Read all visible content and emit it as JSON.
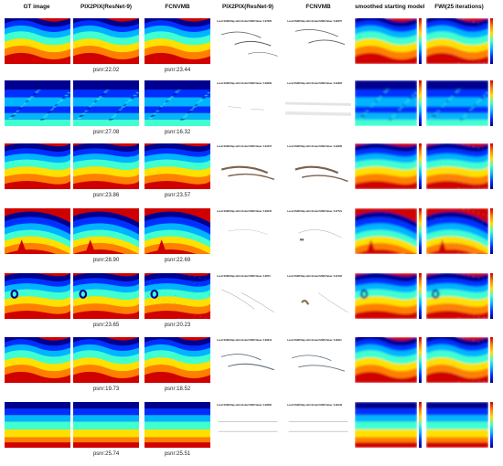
{
  "headers": {
    "gt": "GT image",
    "pix2pix": "PIX2PIX(ResNet-9)",
    "fcnvmb": "FCNVMB",
    "pix2pix_ssim": "PIX2PIX(ResNet-9)",
    "fcnvmb_ssim": "FCNVMB",
    "smoothed": "smoothed starting model",
    "fwi": "FWI(25 iterations)"
  },
  "rows": [
    {
      "psnr_pix2pix": "psnr:22.02",
      "psnr_fcnvmb": "psnr:23.44",
      "ssim_pix2pix": "Local SSIM Map with Global SSIM Value: 0.97626",
      "ssim_fcnvmb": "Local SSIM Map with Global SSIM Value: 0.98475"
    },
    {
      "psnr_pix2pix": "psnr:27.08",
      "psnr_fcnvmb": "psnr:16.32",
      "ssim_pix2pix": "Local SSIM Map with Global SSIM Value: 0.99069",
      "ssim_fcnvmb": "Local SSIM Map with Global SSIM Value: 0.91826"
    },
    {
      "psnr_pix2pix": "psnr:23.86",
      "psnr_fcnvmb": "psnr:23.57",
      "ssim_pix2pix": "Local SSIM Map with Global SSIM Value: 0.93437",
      "ssim_fcnvmb": "Local SSIM Map with Global SSIM Value: 0.93606"
    },
    {
      "psnr_pix2pix": "psnr:28.90",
      "psnr_fcnvmb": "psnr:22.69",
      "ssim_pix2pix": "Local SSIM Map with Global SSIM Value: 0.99045",
      "ssim_fcnvmb": "Local SSIM Map with Global SSIM Value: 0.97721"
    },
    {
      "psnr_pix2pix": "psnr:23.65",
      "psnr_fcnvmb": "psnr:20.23",
      "ssim_pix2pix": "Local SSIM Map with Global SSIM Value: 0.9873",
      "ssim_fcnvmb": "Local SSIM Map with Global SSIM Value: 0.97432"
    },
    {
      "psnr_pix2pix": "psnr:19.73",
      "psnr_fcnvmb": "psnr:18.52",
      "ssim_pix2pix": "Local SSIM Map with Global SSIM Value: 0.98344",
      "ssim_fcnvmb": "Local SSIM Map with Global SSIM Value: 0.98111"
    },
    {
      "psnr_pix2pix": "psnr:25.74",
      "psnr_fcnvmb": "psnr:25.51",
      "ssim_pix2pix": "Local SSIM Map with Global SSIM Value: 0.99065",
      "ssim_fcnvmb": "Local SSIM Map with Global SSIM Value: 0.99146"
    }
  ],
  "colors": {
    "deep_blue": "#00008f",
    "blue": "#0030ff",
    "light_blue": "#00b4ff",
    "cyan": "#40ffd0",
    "yellow": "#ffe000",
    "orange": "#ff8000",
    "red": "#d00000"
  }
}
